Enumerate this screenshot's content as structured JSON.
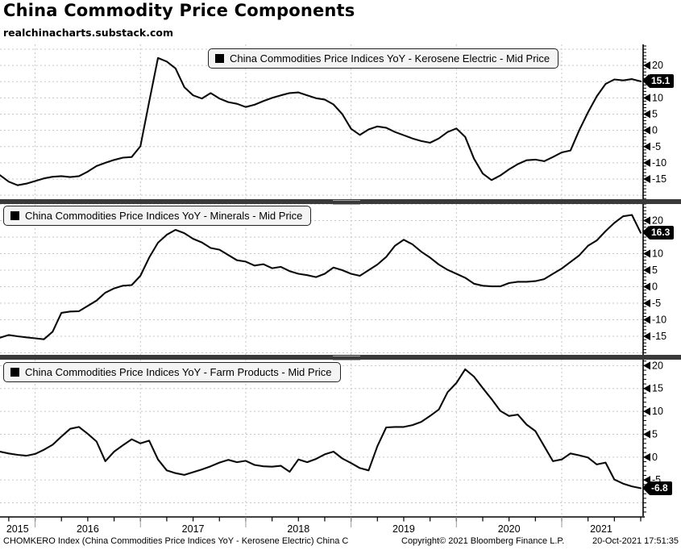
{
  "header": {
    "title": "China Commodity Price Components",
    "subtitle": "realchinacharts.substack.com"
  },
  "colors": {
    "line": "#0a0a0a",
    "grid": "#c6c6c6",
    "axis": "#000000",
    "year_line": "#9a9a9a",
    "divider": "#3a3a3a",
    "legend_bg": "#f4f4f4",
    "value_box_bg": "#000000",
    "value_box_fg": "#ffffff"
  },
  "x_axis": {
    "years": [
      "2015",
      "2016",
      "2017",
      "2018",
      "2019",
      "2020",
      "2021"
    ],
    "x_start": "2015-09",
    "x_end": "2021-10",
    "freq": "monthly",
    "points": 74,
    "year_start_indices": [
      4,
      16,
      28,
      40,
      52,
      64
    ]
  },
  "chart_data": [
    {
      "type": "line",
      "title": "China Commodities Price Indices YoY - Kerosene Electric - Mid Price",
      "legend_marker": "black-square",
      "ylim": [
        -21.2,
        26.5
      ],
      "grid_step": 5,
      "yticks": [
        20,
        10,
        5,
        0,
        -5,
        -10,
        -15
      ],
      "last_label": "15.1",
      "last_value": 15.1,
      "values": [
        -13.8,
        -15.8,
        -16.9,
        -16.4,
        -15.6,
        -14.8,
        -14.3,
        -14.1,
        -14.4,
        -14.1,
        -12.7,
        -11.0,
        -10.0,
        -9.1,
        -8.4,
        -8.2,
        -4.9,
        8.8,
        22.3,
        21.2,
        19.1,
        13.3,
        10.8,
        9.8,
        11.5,
        9.8,
        8.7,
        8.2,
        7.2,
        7.9,
        9.0,
        10.0,
        10.8,
        11.5,
        11.7,
        10.8,
        9.9,
        9.5,
        8.0,
        5.0,
        0.5,
        -1.4,
        0.3,
        1.2,
        0.8,
        -0.5,
        -1.5,
        -2.5,
        -3.3,
        -3.8,
        -2.5,
        -0.5,
        0.6,
        -2.0,
        -8.7,
        -13.3,
        -15.3,
        -13.9,
        -12.0,
        -10.4,
        -9.2,
        -9.0,
        -9.5,
        -8.2,
        -6.8,
        -6.2,
        0.1,
        5.6,
        10.5,
        14.3,
        15.7,
        15.4,
        15.8,
        15.1
      ]
    },
    {
      "type": "line",
      "title": "China Commodities Price Indices YoY - Minerals - Mid Price",
      "legend_marker": "black-square",
      "ylim": [
        -20.6,
        25.0
      ],
      "grid_step": 5,
      "yticks": [
        20,
        10,
        5,
        0,
        -5,
        -10,
        -15
      ],
      "last_label": "16.3",
      "last_value": 16.3,
      "values": [
        -15.4,
        -14.6,
        -15.0,
        -15.3,
        -15.6,
        -15.9,
        -13.6,
        -7.9,
        -7.5,
        -7.4,
        -5.8,
        -4.2,
        -1.8,
        -0.5,
        0.3,
        0.5,
        3.3,
        8.8,
        13.3,
        15.7,
        17.2,
        16.2,
        14.5,
        13.4,
        11.7,
        11.2,
        9.6,
        8.0,
        7.6,
        6.4,
        6.8,
        5.6,
        6.0,
        4.7,
        3.9,
        3.5,
        2.9,
        3.9,
        5.8,
        5.0,
        3.9,
        3.3,
        5.0,
        6.7,
        9.0,
        12.4,
        14.2,
        12.8,
        10.6,
        8.8,
        6.7,
        5.1,
        3.9,
        2.7,
        0.9,
        0.3,
        0.1,
        0.1,
        1.1,
        1.5,
        1.5,
        1.7,
        2.3,
        3.9,
        5.5,
        7.5,
        9.5,
        12.4,
        14.0,
        16.8,
        19.3,
        21.3,
        21.7,
        16.3
      ]
    },
    {
      "type": "line",
      "title": "China Commodities Price Indices YoY - Farm Products - Mid Price",
      "legend_marker": "black-square",
      "ylim": [
        -12.9,
        21.3
      ],
      "grid_step": 5,
      "yticks": [
        20,
        15,
        10,
        5,
        0,
        -5
      ],
      "last_label": "-6.8",
      "last_value": -6.8,
      "values": [
        1.2,
        0.8,
        0.5,
        0.3,
        0.7,
        1.6,
        2.7,
        4.5,
        6.2,
        6.6,
        5.1,
        3.4,
        -0.9,
        1.2,
        2.6,
        3.9,
        3.0,
        3.6,
        -0.5,
        -2.9,
        -3.5,
        -3.9,
        -3.3,
        -2.7,
        -2.0,
        -1.2,
        -0.6,
        -1.1,
        -0.8,
        -1.7,
        -2.0,
        -2.1,
        -1.9,
        -3.2,
        -0.5,
        -1.1,
        -0.4,
        0.6,
        1.2,
        -0.3,
        -1.3,
        -2.4,
        -2.9,
        2.4,
        6.5,
        6.6,
        6.6,
        7.0,
        7.7,
        9.0,
        10.4,
        14.2,
        16.2,
        19.2,
        17.6,
        15.1,
        12.7,
        10.1,
        9.0,
        9.3,
        7.1,
        5.7,
        2.4,
        -0.9,
        -0.5,
        0.8,
        0.4,
        -0.1,
        -1.6,
        -1.2,
        -4.9,
        -5.8,
        -6.4,
        -6.8
      ]
    }
  ],
  "footer": {
    "left": "CHOMKERO Index (China Commodities Price Indices YoY - Kerosene Electric) China C",
    "copyright": "Copyright© 2021 Bloomberg Finance L.P.",
    "timestamp": "20-Oct-2021 17:51:35"
  }
}
